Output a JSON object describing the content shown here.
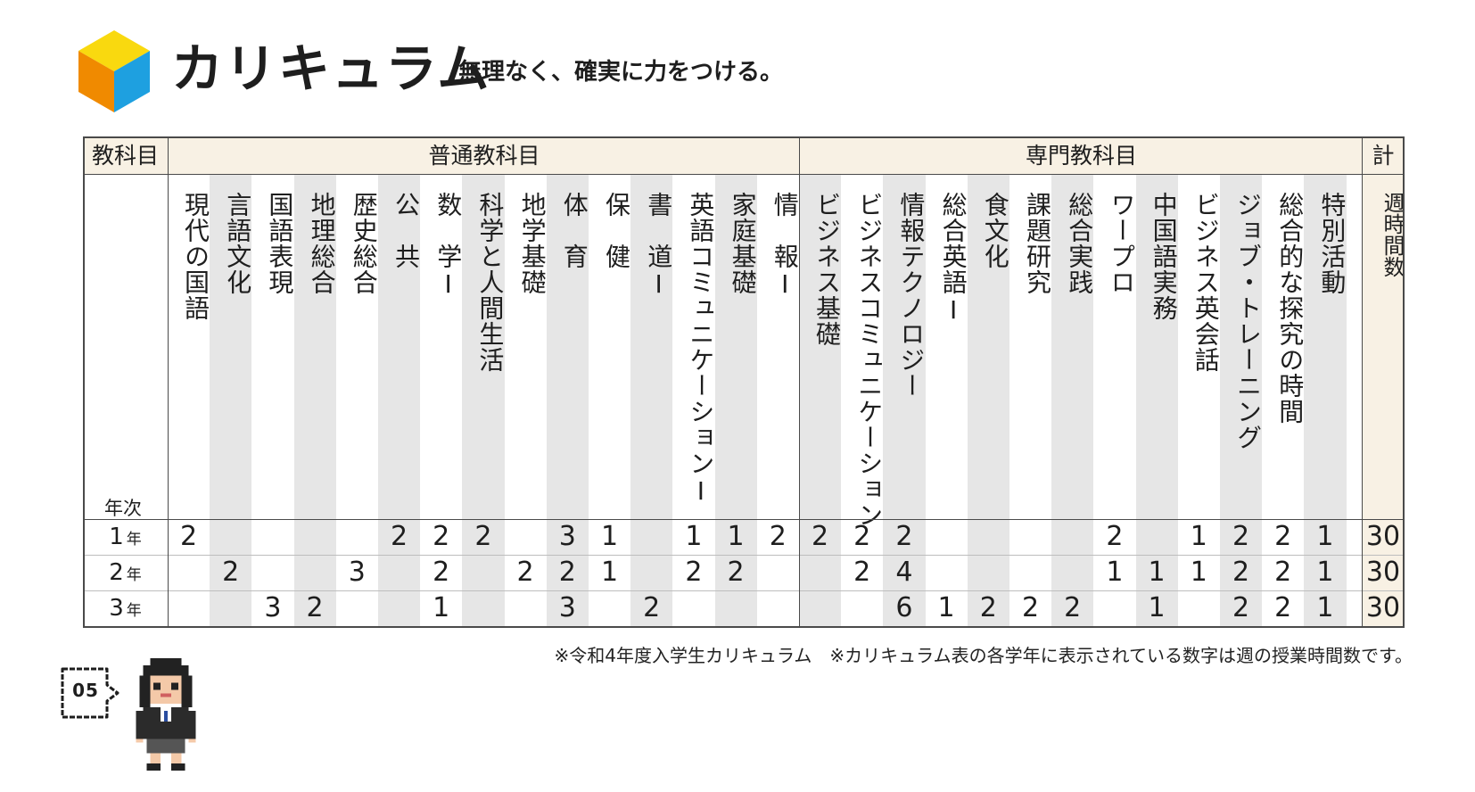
{
  "header": {
    "title": "カリキュラム",
    "subtitle": "無理なく、確実に力をつける。",
    "cube_colors": {
      "top": "#f9d90f",
      "left": "#f08a00",
      "right": "#1ea0e0"
    }
  },
  "table": {
    "subject_header": "教科目",
    "year_label": "年次",
    "general_header": "普通教科目",
    "specialized_header": "専門教科目",
    "total_header": "計",
    "weekly_hours_label": "週時間数",
    "subjects": [
      "現代の国語",
      "言語文化",
      "国語表現",
      "地理総合",
      "歴史総合",
      "公　共",
      "数　学Ⅰ",
      "科学と人間生活",
      "地学基礎",
      "体　育",
      "保　健",
      "書　道Ⅰ",
      "英語コミュニケーションⅠ",
      "家庭基礎",
      "情　報Ⅰ",
      "ビジネス基礎",
      "ビジネスコミュニケーション",
      "情報テクノロジー",
      "総合英語Ⅰ",
      "食文化",
      "課題研究",
      "総合実践",
      "ワープロ",
      "中国語実務",
      "ビジネス英会話",
      "ジョブ・トレーニング",
      "総合的な探究の時間",
      "特別活動"
    ],
    "years": [
      {
        "label": "1",
        "unit": "年",
        "values": [
          "2",
          "",
          "",
          "",
          "",
          "2",
          "2",
          "2",
          "",
          "3",
          "1",
          "",
          "1",
          "1",
          "2",
          "2",
          "2",
          "2",
          "",
          "",
          "",
          "",
          "2",
          "",
          "1",
          "2",
          "2",
          "1"
        ],
        "total": "30"
      },
      {
        "label": "2",
        "unit": "年",
        "values": [
          "",
          "2",
          "",
          "",
          "3",
          "",
          "2",
          "",
          "2",
          "2",
          "1",
          "",
          "2",
          "2",
          "",
          "",
          "2",
          "4",
          "",
          "",
          "",
          "",
          "1",
          "1",
          "1",
          "2",
          "2",
          "1"
        ],
        "total": "30"
      },
      {
        "label": "3",
        "unit": "年",
        "values": [
          "",
          "",
          "3",
          "2",
          "",
          "",
          "1",
          "",
          "",
          "3",
          "",
          "2",
          "",
          "",
          "",
          "",
          "",
          "6",
          "1",
          "2",
          "2",
          "2",
          "",
          "1",
          "",
          "2",
          "2",
          "1"
        ],
        "total": "30"
      }
    ]
  },
  "footnote": "※令和4年度入学生カリキュラム　※カリキュラム表の各学年に表示されている数字は週の授業時間数です。",
  "page_number": "05",
  "colors": {
    "stripe": "#e6e6e6",
    "header_cream": "#f8f1e4",
    "border": "#4a4a4a"
  }
}
